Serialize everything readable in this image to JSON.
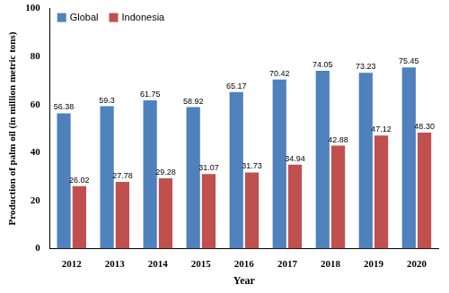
{
  "chart_data": {
    "type": "bar",
    "x_label": "Year",
    "y_label": "Production of palm oil (in million metric tons)",
    "categories": [
      "2012",
      "2013",
      "2014",
      "2015",
      "2016",
      "2017",
      "2018",
      "2019",
      "2020"
    ],
    "series": [
      {
        "name": "Global",
        "color": "#4f81bd",
        "values": [
          56.38,
          59.3,
          61.75,
          58.92,
          65.17,
          70.42,
          74.05,
          73.23,
          75.45
        ]
      },
      {
        "name": "Indonesia",
        "color": "#c0504d",
        "values": [
          26.02,
          27.78,
          29.28,
          31.07,
          31.73,
          34.94,
          42.88,
          47.12,
          48.3
        ],
        "value_labels": [
          "26.02",
          "27.78",
          "29.28",
          "31.07",
          "31.73",
          "34.94",
          "42.88",
          "47.12",
          "48.30"
        ]
      }
    ],
    "ylim": [
      0,
      100
    ],
    "yticks": [
      0,
      20,
      40,
      60,
      80,
      100
    ],
    "grid": false,
    "legend": "top-left",
    "data_labels": true
  }
}
